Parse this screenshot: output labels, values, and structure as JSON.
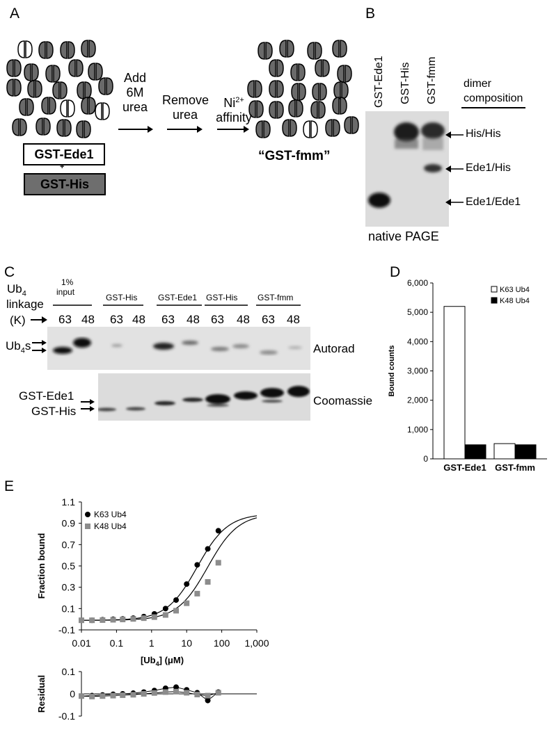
{
  "panels": {
    "A": {
      "letter": "A",
      "step1": "Add\n6M\nurea",
      "step2": "Remove\nurea",
      "step3_main": "Ni",
      "step3_sup": "2+",
      "step3_sub": "affinity",
      "box1": "GST-Ede1",
      "plus": "+",
      "box2": "GST-His",
      "product": "“GST-fmm”"
    },
    "B": {
      "letter": "B",
      "lanes": [
        "GST-Ede1",
        "GST-His",
        "GST-fmm"
      ],
      "header": "dimer composition",
      "header_line1": "dimer",
      "header_line2": "composition",
      "bands": [
        "His/His",
        "Ede1/His",
        "Ede1/Ede1"
      ],
      "footer": "native PAGE"
    },
    "C": {
      "letter": "C",
      "row1_a": "Ub",
      "row1_sub": "4",
      "row2": "linkage",
      "row3": "(K)",
      "groups": [
        "1%\ninput",
        "GST-His",
        "GST-Ede1",
        "GST-His",
        "GST-fmm"
      ],
      "group_line1": "1%",
      "group_line2": "input",
      "linkages": [
        "63",
        "48",
        "63",
        "48",
        "63",
        "48",
        "63",
        "48",
        "63",
        "48"
      ],
      "ub_label": "Ub",
      "ub_sub": "4",
      "ub_suffix": "s",
      "autorad": "Autorad",
      "coomassie": "Coomassie",
      "left_labels": [
        "GST-Ede1",
        "GST-His"
      ]
    },
    "D": {
      "letter": "D"
    },
    "E": {
      "letter": "E"
    }
  },
  "chart_data": [
    {
      "type": "bar",
      "panel": "D",
      "categories": [
        "GST-Ede1",
        "GST-fmm"
      ],
      "series": [
        {
          "name": "K63 Ub4",
          "values": [
            5200,
            520
          ],
          "color": "#ffffff"
        },
        {
          "name": "K48 Ub4",
          "values": [
            480,
            480
          ],
          "color": "#000000"
        }
      ],
      "ylabel": "Bound counts",
      "ylim": [
        0,
        6000
      ],
      "yticks": [
        "0",
        "1,000",
        "2,000",
        "3,000",
        "4,000",
        "5,000",
        "6,000"
      ],
      "legend_position": "top-right"
    },
    {
      "type": "scatter",
      "panel": "E",
      "xscale": "log",
      "xlabel_main": "[Ub",
      "xlabel_sub": "4",
      "xlabel_end": "] (μM)",
      "ylabel": "Fraction bound",
      "xlim": [
        0.01,
        1000
      ],
      "ylim": [
        -0.1,
        1.1
      ],
      "xticks": [
        "0.01",
        "0.1",
        "1",
        "10",
        "100",
        "1,000"
      ],
      "yticks": [
        "-0.1",
        "0.1",
        "0.3",
        "0.5",
        "0.7",
        "0.9",
        "1.1"
      ],
      "legend_position": "top-left",
      "series": [
        {
          "name": "K63 Ub4",
          "marker": "circle",
          "color": "#000000",
          "kd": 20,
          "x": [
            0.01,
            0.02,
            0.04,
            0.08,
            0.15,
            0.3,
            0.6,
            1.2,
            2.5,
            5,
            10,
            20,
            40,
            80
          ],
          "y": [
            -0.01,
            -0.01,
            -0.005,
            0.0,
            0.003,
            0.01,
            0.025,
            0.05,
            0.1,
            0.18,
            0.33,
            0.51,
            0.66,
            0.83
          ]
        },
        {
          "name": "K48 Ub4",
          "marker": "square",
          "color": "#8c8c8c",
          "kd": 40,
          "x": [
            0.01,
            0.02,
            0.04,
            0.08,
            0.15,
            0.3,
            0.6,
            1.2,
            2.5,
            5,
            10,
            20,
            40,
            80
          ],
          "y": [
            -0.01,
            -0.01,
            -0.008,
            -0.005,
            -0.002,
            0.003,
            0.01,
            0.02,
            0.04,
            0.08,
            0.15,
            0.24,
            0.35,
            0.53
          ]
        }
      ]
    },
    {
      "type": "scatter",
      "panel": "E-residual",
      "xscale": "log",
      "ylabel": "Residual",
      "xlim": [
        0.01,
        1000
      ],
      "ylim": [
        -0.1,
        0.1
      ],
      "yticks": [
        "-0.1",
        "0",
        "0.1"
      ],
      "series": [
        {
          "name": "K63 Ub4",
          "marker": "circle",
          "color": "#000000",
          "x": [
            0.01,
            0.02,
            0.04,
            0.08,
            0.15,
            0.3,
            0.6,
            1.2,
            2.5,
            5,
            10,
            20,
            40,
            80
          ],
          "y": [
            -0.01,
            -0.008,
            -0.005,
            -0.002,
            0.0,
            0.003,
            0.008,
            0.015,
            0.025,
            0.03,
            0.018,
            0.005,
            -0.03,
            0.008
          ]
        },
        {
          "name": "K48 Ub4",
          "marker": "square",
          "color": "#8c8c8c",
          "x": [
            0.01,
            0.02,
            0.04,
            0.08,
            0.15,
            0.3,
            0.6,
            1.2,
            2.5,
            5,
            10,
            20,
            40,
            80
          ],
          "y": [
            -0.01,
            -0.012,
            -0.01,
            -0.008,
            -0.006,
            -0.004,
            0.0,
            0.004,
            0.008,
            0.01,
            0.005,
            -0.003,
            -0.008,
            0.005
          ]
        }
      ]
    }
  ]
}
